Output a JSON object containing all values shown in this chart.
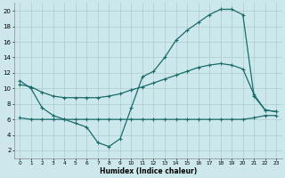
{
  "xlabel": "Humidex (Indice chaleur)",
  "background_color": "#cce8ec",
  "grid_color": "#aacccc",
  "line_color": "#1a6b6b",
  "line_width": 0.9,
  "marker": "+",
  "marker_size": 3,
  "marker_edge_width": 0.8,
  "xlim": [
    -0.5,
    23.5
  ],
  "ylim": [
    1,
    21
  ],
  "xticks": [
    0,
    1,
    2,
    3,
    4,
    5,
    6,
    7,
    8,
    9,
    10,
    11,
    12,
    13,
    14,
    15,
    16,
    17,
    18,
    19,
    20,
    21,
    22,
    23
  ],
  "yticks": [
    2,
    4,
    6,
    8,
    10,
    12,
    14,
    16,
    18,
    20
  ],
  "upper_x": [
    0,
    1,
    2,
    3,
    4,
    5,
    6,
    7,
    8,
    9,
    10,
    11,
    12,
    13,
    14,
    15,
    16,
    17,
    18,
    19,
    20,
    21,
    22,
    23
  ],
  "upper_y": [
    11,
    10,
    7.5,
    6.5,
    6,
    5.5,
    5,
    3,
    2.5,
    3.5,
    7.5,
    11.5,
    12.2,
    14,
    16.2,
    17.5,
    18.5,
    19.5,
    20.2,
    20.2,
    19.5,
    9.0,
    7.2,
    7.0
  ],
  "middle_x": [
    0,
    1,
    2,
    3,
    4,
    5,
    6,
    7,
    8,
    9,
    10,
    11,
    12,
    13,
    14,
    15,
    16,
    17,
    18,
    19,
    20,
    21,
    22,
    23
  ],
  "middle_y": [
    10.5,
    10.2,
    9.5,
    9.0,
    8.8,
    8.8,
    8.8,
    8.8,
    9.0,
    9.3,
    9.8,
    10.2,
    10.7,
    11.2,
    11.7,
    12.2,
    12.7,
    13.0,
    13.2,
    13.0,
    12.5,
    9.2,
    7.2,
    7.0
  ],
  "lower_x": [
    0,
    1,
    2,
    3,
    4,
    5,
    6,
    7,
    8,
    9,
    10,
    11,
    12,
    13,
    14,
    15,
    16,
    17,
    18,
    19,
    20,
    21,
    22,
    23
  ],
  "lower_y": [
    6.2,
    6.0,
    6.0,
    6.0,
    6.0,
    6.0,
    6.0,
    6.0,
    6.0,
    6.0,
    6.0,
    6.0,
    6.0,
    6.0,
    6.0,
    6.0,
    6.0,
    6.0,
    6.0,
    6.0,
    6.0,
    6.2,
    6.5,
    6.5
  ]
}
